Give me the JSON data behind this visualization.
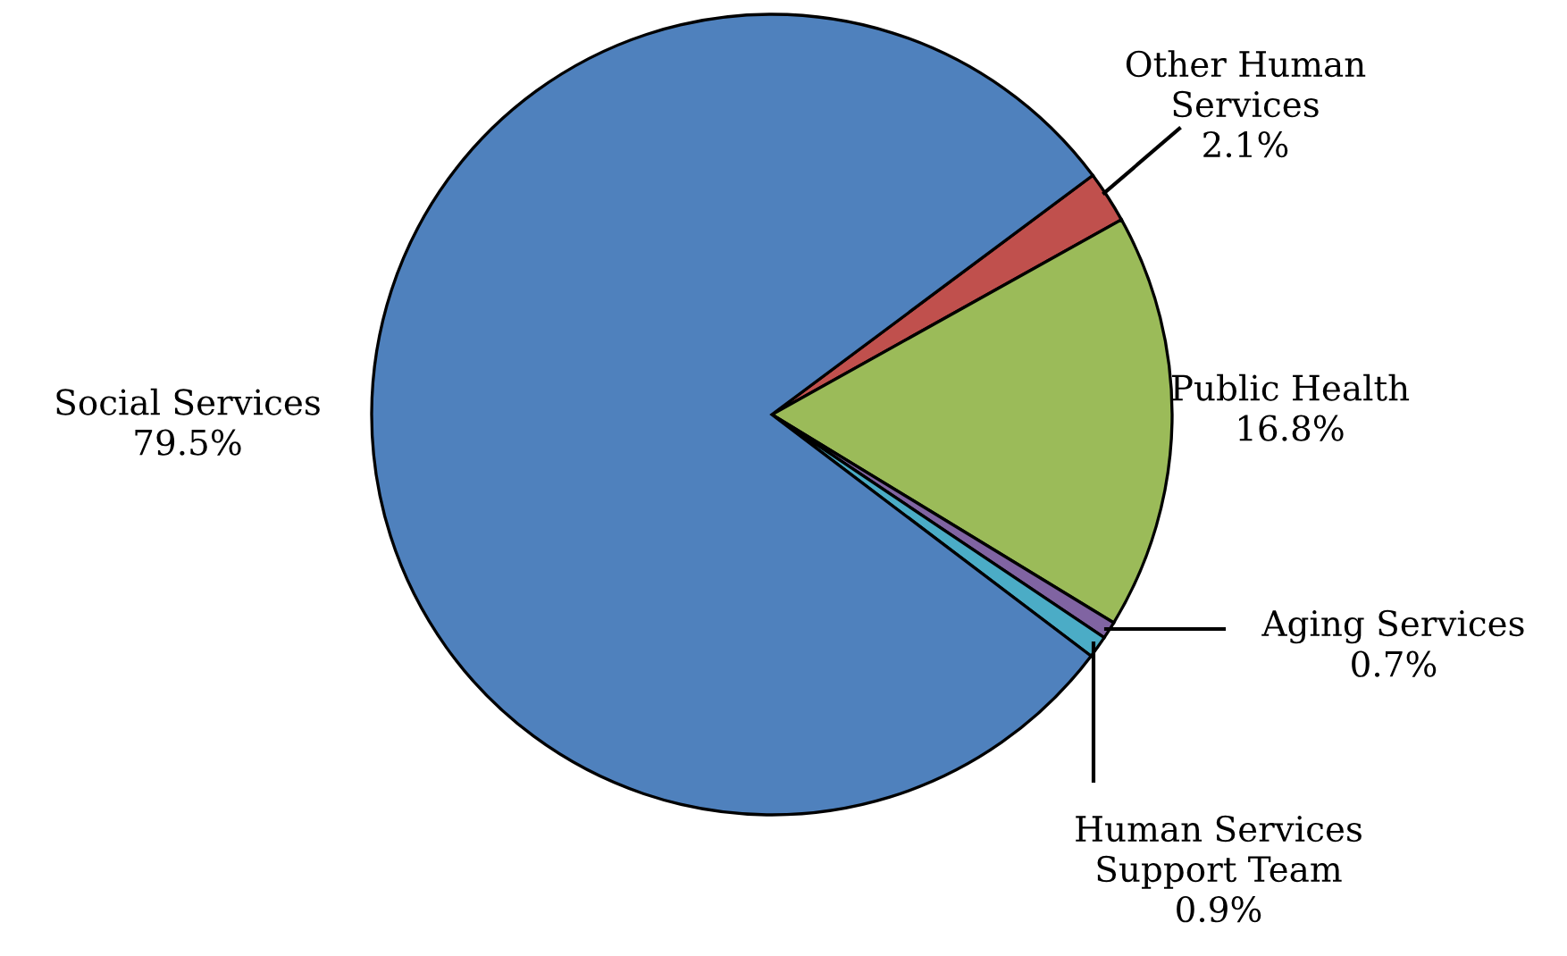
{
  "chart_data": {
    "type": "pie",
    "categories": [
      "Other Human Services",
      "Public Health",
      "Aging Services",
      "Human Services Support Team",
      "Social Services"
    ],
    "values": [
      2.1,
      16.8,
      0.7,
      0.9,
      79.5
    ],
    "value_labels": [
      "2.1%",
      "16.8%",
      "0.7%",
      "0.9%",
      "79.5%"
    ],
    "colors": [
      "#c0504d",
      "#9bbb59",
      "#8064a2",
      "#4bacc6",
      "#4f81bd"
    ]
  }
}
